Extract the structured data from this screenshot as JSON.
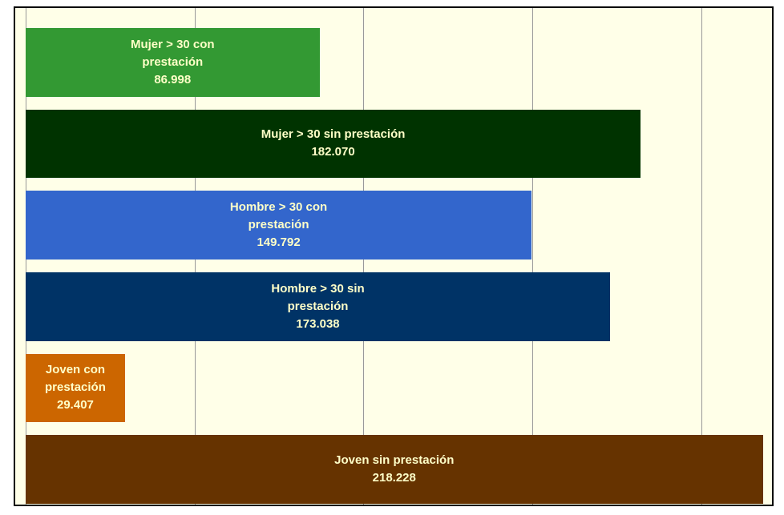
{
  "chart_data": {
    "type": "bar",
    "orientation": "horizontal",
    "categories": [
      "Mujer > 30 con prestación",
      "Mujer > 30 sin prestación",
      "Hombre > 30 con prestación",
      "Hombre > 30 sin prestación",
      "Joven con prestación",
      "Joven sin prestación"
    ],
    "values": [
      86998,
      182070,
      149792,
      173038,
      29407,
      218228
    ],
    "value_labels": [
      "86.998",
      "182.070",
      "149.792",
      "173.038",
      "29.407",
      "218.228"
    ],
    "colors": [
      "#339933",
      "#003300",
      "#3366cc",
      "#003366",
      "#cc6600",
      "#663300"
    ],
    "xlim": [
      0,
      220000
    ],
    "xticks": [
      0,
      50000,
      100000,
      150000,
      200000
    ],
    "grid": true
  }
}
